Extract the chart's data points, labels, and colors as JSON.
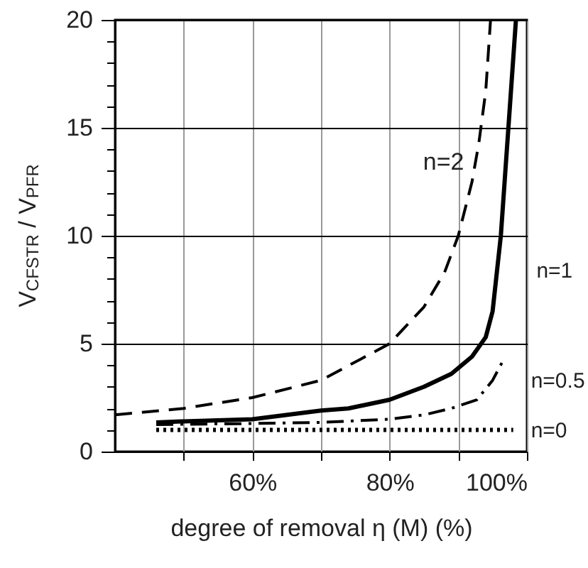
{
  "chart_data": {
    "type": "line",
    "ylabel": "V$_{CFSTR}$ / V$_{PFR}$",
    "xlabel": "degree of removal  η (M)   (%)",
    "xlim": [
      40,
      100
    ],
    "ylim": [
      0,
      20
    ],
    "xticks": [
      {
        "value": 50,
        "label": null
      },
      {
        "value": 60,
        "label": "60%"
      },
      {
        "value": 70,
        "label": null
      },
      {
        "value": 80,
        "label": "80%"
      },
      {
        "value": 90,
        "label": null
      },
      {
        "value": 100,
        "label": "100%"
      }
    ],
    "yticks": [
      0,
      {
        "value": 1,
        "label": null
      },
      {
        "value": 2,
        "label": null
      },
      {
        "value": 3,
        "label": null
      },
      {
        "value": 4,
        "label": null
      },
      5,
      {
        "value": 6,
        "label": null
      },
      {
        "value": 7,
        "label": null
      },
      {
        "value": 8,
        "label": null
      },
      {
        "value": 9,
        "label": null
      },
      10,
      {
        "value": 11,
        "label": null
      },
      {
        "value": 12,
        "label": null
      },
      {
        "value": 13,
        "label": null
      },
      {
        "value": 14,
        "label": null
      },
      15,
      {
        "value": 16,
        "label": null
      },
      {
        "value": 17,
        "label": null
      },
      {
        "value": 18,
        "label": null
      },
      {
        "value": 19,
        "label": null
      },
      20
    ],
    "grid": true,
    "series": [
      {
        "color": "#000000",
        "line_style": "dashed",
        "x": [
          40,
          50,
          60,
          70,
          80,
          85,
          88,
          90,
          92,
          93,
          94,
          94.7
        ],
        "values": [
          1.7,
          2,
          2.5,
          3.3,
          5,
          6.7,
          8.3,
          10,
          12.5,
          14.3,
          16.7,
          20
        ]
      },
      {
        "color": "#000000",
        "line_style": "solid",
        "x": [
          46,
          50,
          60,
          70,
          74,
          80,
          85,
          89,
          92,
          94,
          95,
          96.2,
          97.3,
          98.4
        ],
        "values": [
          1.35,
          1.4,
          1.5,
          1.9,
          2,
          2.4,
          3,
          3.6,
          4.4,
          5.3,
          6.5,
          10,
          15,
          20
        ]
      },
      {
        "color": "#000000",
        "line_style": "dashdot",
        "x": [
          46,
          60,
          70,
          80,
          85,
          89,
          92.7,
          95,
          96.5
        ],
        "values": [
          1.25,
          1.3,
          1.35,
          1.5,
          1.7,
          2,
          2.4,
          3.3,
          4.2
        ]
      },
      {
        "color": "#000000",
        "line_style": "dotted",
        "x": [
          46,
          98
        ],
        "values": [
          1,
          1
        ]
      }
    ],
    "annotations": [
      {
        "text": "n=2",
        "x": 92.5,
        "y": 13.4
      },
      {
        "text": "n=1",
        "x": 95.8,
        "y": 8.4
      },
      {
        "text": "n=0.5",
        "x": 95,
        "y": 3.3
      },
      {
        "text": "n=0",
        "x": 95,
        "y": 1
      }
    ]
  }
}
